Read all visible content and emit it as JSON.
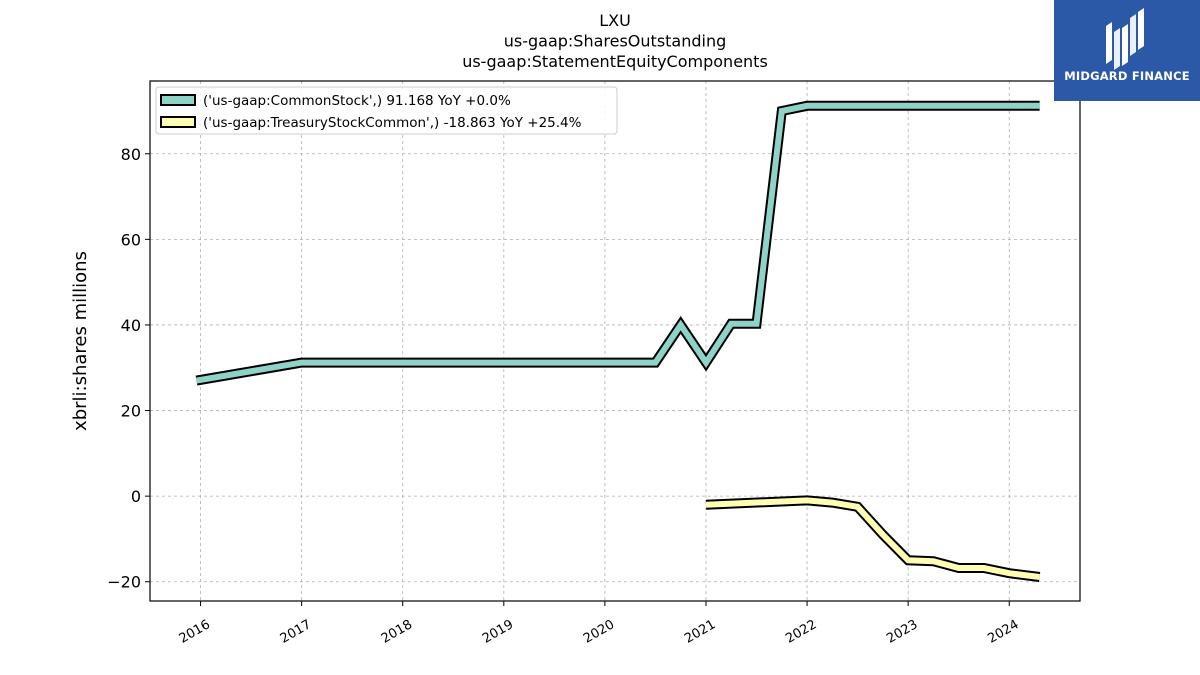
{
  "chart_data": {
    "type": "line",
    "title_lines": [
      "LXU",
      "us-gaap:SharesOutstanding",
      "us-gaap:StatementEquityComponents"
    ],
    "xlabel": "",
    "ylabel": "xbrli:shares millions",
    "xlim": [
      2015.5,
      2024.7
    ],
    "ylim": [
      -24.5,
      97
    ],
    "x_ticks": [
      2016,
      2017,
      2018,
      2019,
      2020,
      2021,
      2022,
      2023,
      2024
    ],
    "x_tick_labels": [
      "2016",
      "2017",
      "2018",
      "2019",
      "2020",
      "2021",
      "2022",
      "2023",
      "2024"
    ],
    "y_ticks": [
      -20,
      0,
      20,
      40,
      60,
      80
    ],
    "y_tick_labels": [
      "−20",
      "0",
      "20",
      "40",
      "60",
      "80"
    ],
    "grid": true,
    "legend_position": "top-left",
    "series": [
      {
        "name": "('us-gaap:CommonStock',) 91.168 YoY +0.0%",
        "color": "#8dd3c7",
        "points": [
          [
            2015.96,
            27.0
          ],
          [
            2017.0,
            31.2
          ],
          [
            2020.5,
            31.2
          ],
          [
            2020.75,
            40.0
          ],
          [
            2021.0,
            31.2
          ],
          [
            2021.25,
            40.3
          ],
          [
            2021.5,
            40.3
          ],
          [
            2021.75,
            90.0
          ],
          [
            2022.0,
            91.2
          ],
          [
            2024.3,
            91.2
          ]
        ]
      },
      {
        "name": "('us-gaap:TreasuryStockCommon',) -18.863 YoY +25.4%",
        "color": "#ffffb3",
        "points": [
          [
            2021.0,
            -2.0
          ],
          [
            2022.0,
            -1.0
          ],
          [
            2022.25,
            -1.5
          ],
          [
            2022.5,
            -2.5
          ],
          [
            2022.75,
            -9.0
          ],
          [
            2023.0,
            -15.0
          ],
          [
            2023.25,
            -15.2
          ],
          [
            2023.5,
            -16.8
          ],
          [
            2023.75,
            -16.8
          ],
          [
            2024.0,
            -18.0
          ],
          [
            2024.3,
            -18.9
          ]
        ]
      }
    ]
  },
  "logo": {
    "text": "MIDGARD FINANCE"
  }
}
